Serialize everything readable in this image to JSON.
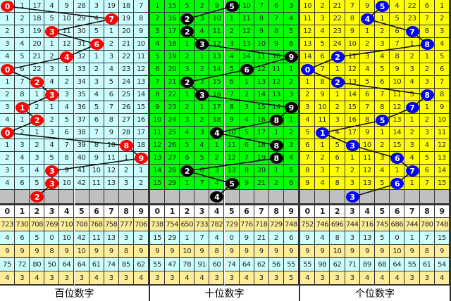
{
  "column_headers": [
    "0",
    "1",
    "2",
    "3",
    "4",
    "5",
    "6",
    "7",
    "8",
    "9"
  ],
  "sections": [
    {
      "title": "百位数字",
      "bg": "#ccffff",
      "ball_color": "#ff0000",
      "ball_text": "#ffffff",
      "rows": [
        [
          "0",
          "1",
          "17",
          "4",
          "9",
          "28",
          "3",
          "19",
          "18",
          "7"
        ],
        [
          "1",
          "2",
          "18",
          "5",
          "10",
          "29",
          "4",
          "7",
          "19",
          "8"
        ],
        [
          "2",
          "3",
          "19",
          "3",
          "11",
          "30",
          "5",
          "1",
          "20",
          "9"
        ],
        [
          "3",
          "4",
          "20",
          "1",
          "12",
          "31",
          "6",
          "2",
          "21",
          "10"
        ],
        [
          "4",
          "5",
          "21",
          "2",
          "4",
          "32",
          "1",
          "3",
          "22",
          "11"
        ],
        [
          "0",
          "6",
          "22",
          "3",
          "1",
          "33",
          "2",
          "4",
          "23",
          "12"
        ],
        [
          "1",
          "7",
          "2",
          "4",
          "2",
          "34",
          "3",
          "5",
          "24",
          "13"
        ],
        [
          "2",
          "8",
          "1",
          "3",
          "3",
          "35",
          "4",
          "6",
          "25",
          "14"
        ],
        [
          "3",
          "1",
          "2",
          "1",
          "4",
          "36",
          "5",
          "7",
          "26",
          "15"
        ],
        [
          "4",
          "1",
          "2",
          "2",
          "5",
          "37",
          "6",
          "8",
          "27",
          "16"
        ],
        [
          "0",
          "2",
          "1",
          "3",
          "6",
          "38",
          "7",
          "9",
          "28",
          "17"
        ],
        [
          "1",
          "3",
          "2",
          "4",
          "7",
          "39",
          "8",
          "10",
          "8",
          "18"
        ],
        [
          "2",
          "4",
          "3",
          "5",
          "8",
          "40",
          "9",
          "11",
          "1",
          "9"
        ],
        [
          "3",
          "5",
          "4",
          "3",
          "9",
          "41",
          "10",
          "12",
          "2",
          "1"
        ],
        [
          "4",
          "6",
          "5",
          "3",
          "10",
          "42",
          "11",
          "13",
          "3",
          "2"
        ]
      ],
      "balls": [
        0,
        7,
        3,
        6,
        4,
        0,
        2,
        3,
        1,
        2,
        0,
        8,
        9,
        3,
        3
      ],
      "predicted": 2,
      "stats": [
        [
          "723",
          "730",
          "708",
          "769",
          "710",
          "708",
          "768",
          "758",
          "777",
          "706"
        ],
        [
          "4",
          "6",
          "5",
          "0",
          "10",
          "42",
          "11",
          "13",
          "3",
          "2"
        ],
        [
          "9",
          "9",
          "9",
          "8",
          "9",
          "10",
          "9",
          "9",
          "8",
          "9"
        ],
        [
          "75",
          "72",
          "80",
          "50",
          "64",
          "64",
          "61",
          "74",
          "85",
          "62"
        ],
        [
          "4",
          "3",
          "4",
          "3",
          "3",
          "3",
          "4",
          "3",
          "3",
          "4"
        ]
      ]
    },
    {
      "title": "十位数字",
      "bg": "#00ff00",
      "ball_color": "#000000",
      "ball_text": "#ffffff",
      "rows": [
        [
          "1",
          "15",
          "5",
          "2",
          "9",
          "5",
          "10",
          "7",
          "6",
          "3"
        ],
        [
          "2",
          "16",
          "2",
          "3",
          "10",
          "1",
          "11",
          "8",
          "7",
          "4"
        ],
        [
          "3",
          "17",
          "2",
          "4",
          "11",
          "2",
          "12",
          "9",
          "8",
          "5"
        ],
        [
          "4",
          "18",
          "1",
          "3",
          "12",
          "3",
          "13",
          "10",
          "9",
          "6"
        ],
        [
          "5",
          "19",
          "2",
          "1",
          "13",
          "4",
          "14",
          "11",
          "10",
          "9"
        ],
        [
          "6",
          "20",
          "3",
          "2",
          "14",
          "5",
          "6",
          "12",
          "11",
          "1"
        ],
        [
          "7",
          "21",
          "2",
          "3",
          "15",
          "6",
          "1",
          "13",
          "12",
          "2"
        ],
        [
          "8",
          "22",
          "1",
          "3",
          "16",
          "7",
          "2",
          "14",
          "13",
          "3"
        ],
        [
          "9",
          "23",
          "2",
          "1",
          "17",
          "8",
          "3",
          "15",
          "14",
          "9"
        ],
        [
          "10",
          "24",
          "3",
          "2",
          "18",
          "9",
          "4",
          "16",
          "8",
          "1"
        ],
        [
          "11",
          "25",
          "4",
          "3",
          "4",
          "10",
          "5",
          "17",
          "1",
          "2"
        ],
        [
          "12",
          "26",
          "5",
          "4",
          "1",
          "11",
          "6",
          "18",
          "8",
          "3"
        ],
        [
          "13",
          "27",
          "6",
          "5",
          "2",
          "12",
          "7",
          "19",
          "8",
          "4"
        ],
        [
          "14",
          "28",
          "2",
          "6",
          "3",
          "13",
          "8",
          "20",
          "1",
          "5"
        ],
        [
          "15",
          "29",
          "1",
          "7",
          "4",
          "5",
          "9",
          "21",
          "2",
          "6"
        ]
      ],
      "balls": [
        5,
        2,
        2,
        3,
        9,
        6,
        2,
        3,
        9,
        8,
        4,
        8,
        8,
        2,
        5
      ],
      "predicted": 4,
      "stats": [
        [
          "738",
          "754",
          "650",
          "733",
          "782",
          "729",
          "776",
          "718",
          "729",
          "748"
        ],
        [
          "15",
          "29",
          "1",
          "7",
          "4",
          "0",
          "9",
          "21",
          "2",
          "6"
        ],
        [
          "9",
          "9",
          "10",
          "9",
          "8",
          "9",
          "9",
          "9",
          "9",
          "9"
        ],
        [
          "55",
          "47",
          "78",
          "91",
          "60",
          "74",
          "64",
          "62",
          "56",
          "55"
        ],
        [
          "3",
          "3",
          "4",
          "4",
          "3",
          "3",
          "4",
          "3",
          "3",
          "5"
        ]
      ]
    },
    {
      "title": "个位数字",
      "bg": "#ffff00",
      "ball_color": "#0000ff",
      "ball_text": "#ffffff",
      "rows": [
        [
          "10",
          "2",
          "21",
          "7",
          "9",
          "5",
          "4",
          "22",
          "6",
          "1"
        ],
        [
          "11",
          "3",
          "22",
          "8",
          "4",
          "1",
          "5",
          "23",
          "7",
          "2"
        ],
        [
          "12",
          "4",
          "23",
          "9",
          "1",
          "2",
          "6",
          "7",
          "8",
          "3"
        ],
        [
          "13",
          "5",
          "24",
          "10",
          "2",
          "3",
          "7",
          "1",
          "8",
          "4"
        ],
        [
          "14",
          "6",
          "2",
          "11",
          "3",
          "4",
          "8",
          "2",
          "1",
          "5"
        ],
        [
          "0",
          "7",
          "1",
          "12",
          "4",
          "5",
          "9",
          "3",
          "2",
          "6"
        ],
        [
          "1",
          "8",
          "2",
          "13",
          "5",
          "6",
          "10",
          "4",
          "3",
          "7"
        ],
        [
          "2",
          "9",
          "1",
          "14",
          "6",
          "7",
          "11",
          "5",
          "8",
          "8"
        ],
        [
          "3",
          "10",
          "2",
          "15",
          "7",
          "8",
          "12",
          "7",
          "1",
          "9"
        ],
        [
          "4",
          "11",
          "3",
          "16",
          "8",
          "5",
          "13",
          "1",
          "2",
          "10"
        ],
        [
          "5",
          "1",
          "4",
          "17",
          "9",
          "1",
          "14",
          "2",
          "3",
          "11"
        ],
        [
          "6",
          "1",
          "5",
          "3",
          "10",
          "2",
          "15",
          "3",
          "4",
          "12"
        ],
        [
          "7",
          "2",
          "6",
          "1",
          "11",
          "3",
          "6",
          "4",
          "5",
          "13"
        ],
        [
          "8",
          "3",
          "7",
          "2",
          "12",
          "4",
          "1",
          "7",
          "6",
          "14"
        ],
        [
          "9",
          "4",
          "8",
          "3",
          "13",
          "5",
          "6",
          "1",
          "7",
          "15"
        ]
      ],
      "balls": [
        5,
        4,
        7,
        8,
        2,
        0,
        2,
        8,
        7,
        5,
        1,
        3,
        6,
        7,
        6
      ],
      "predicted": 3,
      "stats": [
        [
          "752",
          "746",
          "696",
          "744",
          "716",
          "745",
          "686",
          "744",
          "780",
          "748"
        ],
        [
          "9",
          "4",
          "8",
          "3",
          "13",
          "5",
          "0",
          "1",
          "7",
          "15"
        ],
        [
          "9",
          "9",
          "10",
          "9",
          "9",
          "9",
          "10",
          "9",
          "8",
          "9"
        ],
        [
          "55",
          "98",
          "62",
          "71",
          "89",
          "68",
          "64",
          "55",
          "61",
          "54"
        ],
        [
          "4",
          "3",
          "3",
          "3",
          "4",
          "4",
          "4",
          "3",
          "3",
          "4"
        ]
      ]
    }
  ],
  "stat_colors": [
    "#ffee99",
    "#ccffff",
    "#ffee99",
    "#ccffff",
    "#ffee99"
  ],
  "empty_row_color": "#c0c0c0"
}
